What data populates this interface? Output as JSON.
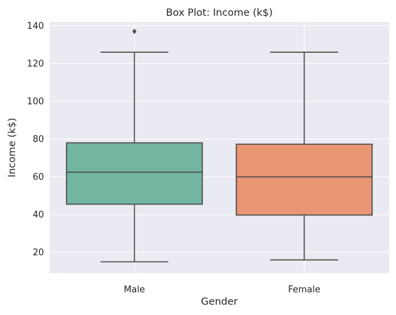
{
  "chart_data": {
    "type": "box",
    "title": "Box Plot: Income (k$)",
    "xlabel": "Gender",
    "ylabel": "Income (k$)",
    "ylim": [
      9,
      142
    ],
    "yticks": [
      20,
      40,
      60,
      80,
      100,
      120,
      140
    ],
    "grid": true,
    "categories": [
      "Male",
      "Female"
    ],
    "boxes": [
      {
        "category": "Male",
        "whisker_low": 15,
        "q1": 45.5,
        "median": 62.5,
        "q3": 78,
        "whisker_high": 126,
        "outliers": [
          137
        ],
        "color": "#72b6a1"
      },
      {
        "category": "Female",
        "whisker_low": 16,
        "q1": 39.75,
        "median": 60,
        "q3": 77.25,
        "whisker_high": 126,
        "outliers": [],
        "color": "#e99675"
      }
    ]
  }
}
